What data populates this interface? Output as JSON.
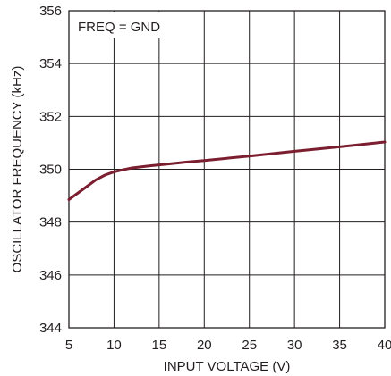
{
  "chart_data": {
    "type": "line",
    "title": "",
    "xlabel": "INPUT VOLTAGE (V)",
    "ylabel": "OSCILLATOR FREQUENCY (kHz)",
    "xlim": [
      5,
      40
    ],
    "ylim": [
      344,
      356
    ],
    "x_ticks": [
      5,
      10,
      15,
      20,
      25,
      30,
      35,
      40
    ],
    "y_ticks": [
      344,
      346,
      348,
      350,
      352,
      354,
      356
    ],
    "x_tick_labels": [
      "5",
      "10",
      "15",
      "20",
      "25",
      "30",
      "35",
      "40"
    ],
    "y_tick_labels": [
      "344",
      "346",
      "348",
      "350",
      "352",
      "354",
      "356"
    ],
    "grid": true,
    "annotation": "FREQ = GND",
    "series": [
      {
        "color": "#7b1e2f",
        "x": [
          5,
          6,
          7,
          8,
          9,
          10,
          11,
          12,
          14,
          16,
          18,
          20,
          25,
          30,
          35,
          40
        ],
        "y": [
          348.85,
          349.1,
          349.35,
          349.6,
          349.78,
          349.9,
          349.98,
          350.05,
          350.13,
          350.2,
          350.27,
          350.33,
          350.5,
          350.68,
          350.85,
          351.03
        ]
      }
    ]
  }
}
